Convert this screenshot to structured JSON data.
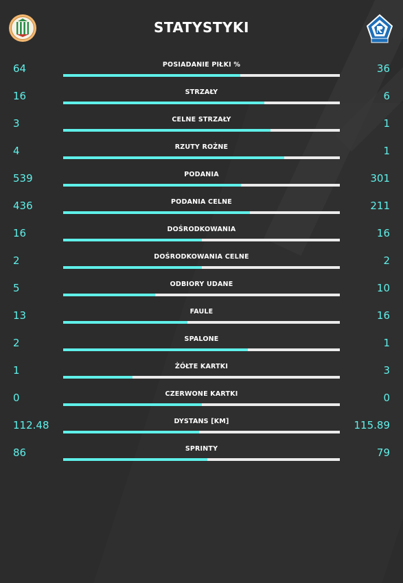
{
  "header": {
    "title": "STATYSTYKI",
    "home_logo_icon": "zaglebie-crest-icon",
    "away_logo_icon": "ruch-chorzow-crest-icon"
  },
  "colors": {
    "background": "#2c2c2c",
    "accent": "#5ff0ea",
    "bar_track": "#ebebeb",
    "text": "#ffffff"
  },
  "stats": [
    {
      "label": "POSIADANIE PIŁKI %",
      "home": "64",
      "away": "36",
      "home_share": 0.64
    },
    {
      "label": "STRZAŁY",
      "home": "16",
      "away": "6",
      "home_share": 0.727
    },
    {
      "label": "CELNE STRZAŁY",
      "home": "3",
      "away": "1",
      "home_share": 0.75
    },
    {
      "label": "RZUTY ROŻNE",
      "home": "4",
      "away": "1",
      "home_share": 0.8
    },
    {
      "label": "PODANIA",
      "home": "539",
      "away": "301",
      "home_share": 0.642
    },
    {
      "label": "PODANIA CELNE",
      "home": "436",
      "away": "211",
      "home_share": 0.674
    },
    {
      "label": "DOŚRODKOWANIA",
      "home": "16",
      "away": "16",
      "home_share": 0.5
    },
    {
      "label": "DOŚRODKOWANIA CELNE",
      "home": "2",
      "away": "2",
      "home_share": 0.5
    },
    {
      "label": "ODBIORY UDANE",
      "home": "5",
      "away": "10",
      "home_share": 0.333
    },
    {
      "label": "FAULE",
      "home": "13",
      "away": "16",
      "home_share": 0.448
    },
    {
      "label": "SPALONE",
      "home": "2",
      "away": "1",
      "home_share": 0.667
    },
    {
      "label": "ŻÓŁTE KARTKI",
      "home": "1",
      "away": "3",
      "home_share": 0.25
    },
    {
      "label": "CZERWONE KARTKI",
      "home": "0",
      "away": "0",
      "home_share": 0.5
    },
    {
      "label": "DYSTANS [KM]",
      "home": "112.48",
      "away": "115.89",
      "home_share": 0.492
    },
    {
      "label": "SPRINTY",
      "home": "86",
      "away": "79",
      "home_share": 0.521
    }
  ]
}
